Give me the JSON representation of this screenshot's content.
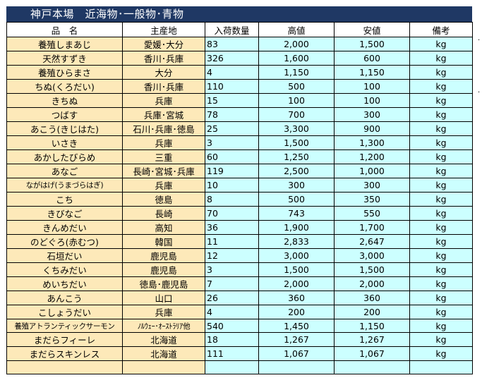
{
  "title": "神戸本場　近海物･一般物･青物",
  "headers": {
    "name": "品　名",
    "origin": "主産地",
    "qty": "入荷数量",
    "high": "高値",
    "low": "安値",
    "unit": "備考"
  },
  "rows": [
    {
      "name": "養殖しまあじ",
      "origin": "愛媛･大分",
      "qty": "83",
      "high": "2,000",
      "low": "1,500",
      "unit": "kg"
    },
    {
      "name": "天然すずき",
      "origin": "香川･兵庫",
      "qty": "326",
      "high": "1,600",
      "low": "600",
      "unit": "kg"
    },
    {
      "name": "養殖ひらまさ",
      "origin": "大分",
      "qty": "4",
      "high": "1,150",
      "low": "1,150",
      "unit": "kg"
    },
    {
      "name": "ちぬ(くろだい)",
      "origin": "香川･兵庫",
      "qty": "110",
      "high": "500",
      "low": "100",
      "unit": "kg"
    },
    {
      "name": "きちぬ",
      "origin": "兵庫",
      "qty": "15",
      "high": "100",
      "low": "100",
      "unit": "kg"
    },
    {
      "name": "つばす",
      "origin": "兵庫･宮城",
      "qty": "78",
      "high": "700",
      "low": "300",
      "unit": "kg"
    },
    {
      "name": "あこう(きじはた)",
      "origin": "石川･兵庫･徳島",
      "qty": "25",
      "high": "3,300",
      "low": "900",
      "unit": "kg"
    },
    {
      "name": "いさき",
      "origin": "兵庫",
      "qty": "3",
      "high": "1,500",
      "low": "1,300",
      "unit": "kg"
    },
    {
      "name": "あかしたびらめ",
      "origin": "三重",
      "qty": "60",
      "high": "1,250",
      "low": "1,200",
      "unit": "kg"
    },
    {
      "name": "あなご",
      "origin": "長崎･宮城･兵庫",
      "qty": "119",
      "high": "2,500",
      "low": "1,000",
      "unit": "kg"
    },
    {
      "name": "ながはげ(うまづらはぎ)",
      "origin": "兵庫",
      "qty": "10",
      "high": "300",
      "low": "300",
      "unit": "kg"
    },
    {
      "name": "こち",
      "origin": "徳島",
      "qty": "8",
      "high": "500",
      "low": "350",
      "unit": "kg"
    },
    {
      "name": "きびなご",
      "origin": "長崎",
      "qty": "70",
      "high": "743",
      "low": "550",
      "unit": "kg"
    },
    {
      "name": "きんめだい",
      "origin": "高知",
      "qty": "36",
      "high": "1,900",
      "low": "1,700",
      "unit": "kg"
    },
    {
      "name": "のどぐろ(赤むつ)",
      "origin": "韓国",
      "qty": "11",
      "high": "2,833",
      "low": "2,647",
      "unit": "kg"
    },
    {
      "name": "石垣だい",
      "origin": "鹿児島",
      "qty": "12",
      "high": "3,000",
      "low": "3,000",
      "unit": "kg"
    },
    {
      "name": "くちみだい",
      "origin": "鹿児島",
      "qty": "3",
      "high": "1,500",
      "low": "1,500",
      "unit": "kg"
    },
    {
      "name": "めいちだい",
      "origin": "徳島･鹿児島",
      "qty": "7",
      "high": "2,000",
      "low": "2,000",
      "unit": "kg"
    },
    {
      "name": "あんこう",
      "origin": "山口",
      "qty": "26",
      "high": "360",
      "low": "360",
      "unit": "kg"
    },
    {
      "name": "こしょうだい",
      "origin": "兵庫",
      "qty": "4",
      "high": "200",
      "low": "200",
      "unit": "kg"
    },
    {
      "name": "養殖アトランティックサーモン",
      "origin": "ﾉﾙｳｪｰ･ｵｰｽﾄﾗﾘｱ他",
      "qty": "540",
      "high": "1,450",
      "low": "1,150",
      "unit": "kg"
    },
    {
      "name": "まだらフィーレ",
      "origin": "北海道",
      "qty": "18",
      "high": "1,267",
      "low": "1,267",
      "unit": "kg"
    },
    {
      "name": "まだらスキンレス",
      "origin": "北海道",
      "qty": "111",
      "high": "1,067",
      "low": "1,067",
      "unit": "kg"
    },
    {
      "name": "",
      "origin": "",
      "qty": "",
      "high": "",
      "low": "",
      "unit": ""
    }
  ]
}
